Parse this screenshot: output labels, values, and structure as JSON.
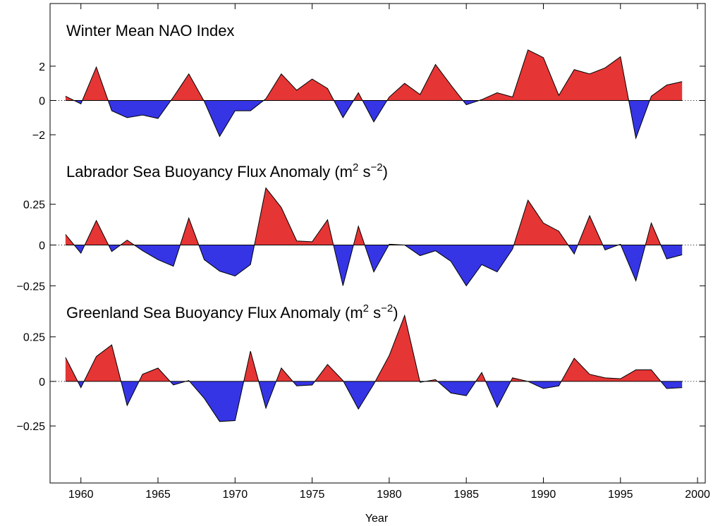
{
  "chart_data": {
    "type": "area",
    "xlabel": "Year",
    "xlim": [
      1958,
      2000.5
    ],
    "xticks": [
      1960,
      1965,
      1970,
      1975,
      1980,
      1985,
      1990,
      1995,
      2000
    ],
    "x": [
      1959,
      1960,
      1961,
      1962,
      1963,
      1964,
      1965,
      1966,
      1967,
      1968,
      1969,
      1970,
      1971,
      1972,
      1973,
      1974,
      1975,
      1976,
      1977,
      1978,
      1979,
      1980,
      1981,
      1982,
      1983,
      1984,
      1985,
      1986,
      1987,
      1988,
      1989,
      1990,
      1991,
      1992,
      1993,
      1994,
      1995,
      1996,
      1997,
      1998,
      1999
    ],
    "colors": {
      "positive": "#e63535",
      "negative": "#3535e6",
      "outline": "#000000"
    },
    "panels": [
      {
        "name": "Winter Mean NAO Index",
        "title_main": "Winter Mean NAO Index",
        "title_unit_base": "",
        "title_unit_sup": "",
        "title_unit_mid": "",
        "title_unit_sup2": "",
        "title_unit_end": "",
        "ylim": [
          -3.6,
          3.6
        ],
        "yticks": [
          -2,
          0,
          2
        ],
        "yticklabels": [
          "−2",
          "0",
          "2"
        ],
        "values": [
          0.25,
          -0.2,
          1.95,
          -0.6,
          -1.0,
          -0.85,
          -1.05,
          0.2,
          1.55,
          -0.05,
          -2.1,
          -0.6,
          -0.6,
          0.1,
          1.55,
          0.6,
          1.25,
          0.7,
          -1.0,
          0.45,
          -1.25,
          0.2,
          1.0,
          0.35,
          2.1,
          0.9,
          -0.25,
          0.05,
          0.45,
          0.2,
          2.95,
          2.5,
          0.3,
          1.8,
          1.55,
          1.9,
          2.55,
          -2.2,
          0.25,
          0.9,
          1.1
        ]
      },
      {
        "name": "Labrador Sea Buoyancy Flux Anomaly",
        "title_main": "Labrador Sea Buoyancy Flux Anomaly (m",
        "title_unit_sup": "2",
        "title_unit_mid": " s",
        "title_unit_sup2": "−2",
        "title_unit_end": ")",
        "ylim": [
          -0.4,
          0.4
        ],
        "yticks": [
          -0.25,
          0,
          0.25
        ],
        "yticklabels": [
          "−0.25",
          "0",
          "0.25"
        ],
        "values": [
          0.065,
          -0.05,
          0.15,
          -0.04,
          0.03,
          -0.035,
          -0.09,
          -0.13,
          0.165,
          -0.09,
          -0.16,
          -0.19,
          -0.12,
          0.35,
          0.23,
          0.025,
          0.02,
          0.155,
          -0.25,
          0.115,
          -0.165,
          0.005,
          0.0,
          -0.065,
          -0.035,
          -0.1,
          -0.25,
          -0.12,
          -0.165,
          -0.025,
          0.275,
          0.135,
          0.085,
          -0.055,
          0.18,
          -0.03,
          0.005,
          -0.22,
          0.135,
          -0.085,
          -0.06
        ]
      },
      {
        "name": "Greenland Sea Buoyancy Flux Anomaly",
        "title_main": "Greenland Sea Buoyancy Flux Anomaly (m",
        "title_unit_sup": "2",
        "title_unit_mid": " s",
        "title_unit_sup2": "−2",
        "title_unit_end": ")",
        "ylim": [
          -0.57,
          0.34
        ],
        "yticks": [
          -0.25,
          0,
          0.25
        ],
        "yticklabels": [
          "−0.25",
          "0",
          "0.25"
        ],
        "values": [
          0.135,
          -0.035,
          0.14,
          0.205,
          -0.135,
          0.04,
          0.075,
          -0.02,
          0.005,
          -0.095,
          -0.225,
          -0.22,
          0.17,
          -0.15,
          0.075,
          -0.025,
          -0.02,
          0.095,
          0.005,
          -0.155,
          -0.015,
          0.145,
          0.37,
          -0.005,
          0.01,
          -0.065,
          -0.08,
          0.05,
          -0.145,
          0.02,
          0.0,
          -0.04,
          -0.025,
          0.13,
          0.04,
          0.02,
          0.015,
          0.065,
          0.065,
          -0.04,
          -0.035
        ]
      }
    ]
  }
}
